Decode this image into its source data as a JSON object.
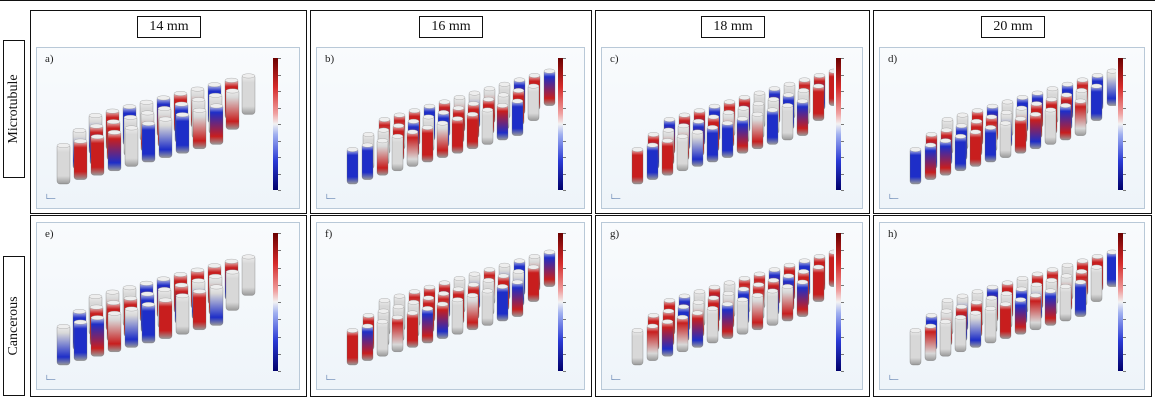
{
  "figure": {
    "columns": [
      {
        "label": "14 mm"
      },
      {
        "label": "16 mm"
      },
      {
        "label": "18 mm"
      },
      {
        "label": "20 mm"
      }
    ],
    "rows": [
      {
        "label": "Microtubule",
        "panels": [
          "a)",
          "b)",
          "c)",
          "d)"
        ]
      },
      {
        "label": "Cancerous",
        "panels": [
          "e)",
          "f)",
          "g)",
          "h)"
        ]
      }
    ],
    "colors": {
      "positive": "#c81e1e",
      "negative": "#1e2ec8",
      "neutral": "#d8d8d8",
      "colormap": [
        "#6b0000",
        "#d52a2a",
        "#f2f2f2",
        "#2a3ad5",
        "#00006b"
      ]
    },
    "icons": {
      "axes": "axes-triad-icon",
      "colorbar": "colorbar-legend"
    }
  }
}
